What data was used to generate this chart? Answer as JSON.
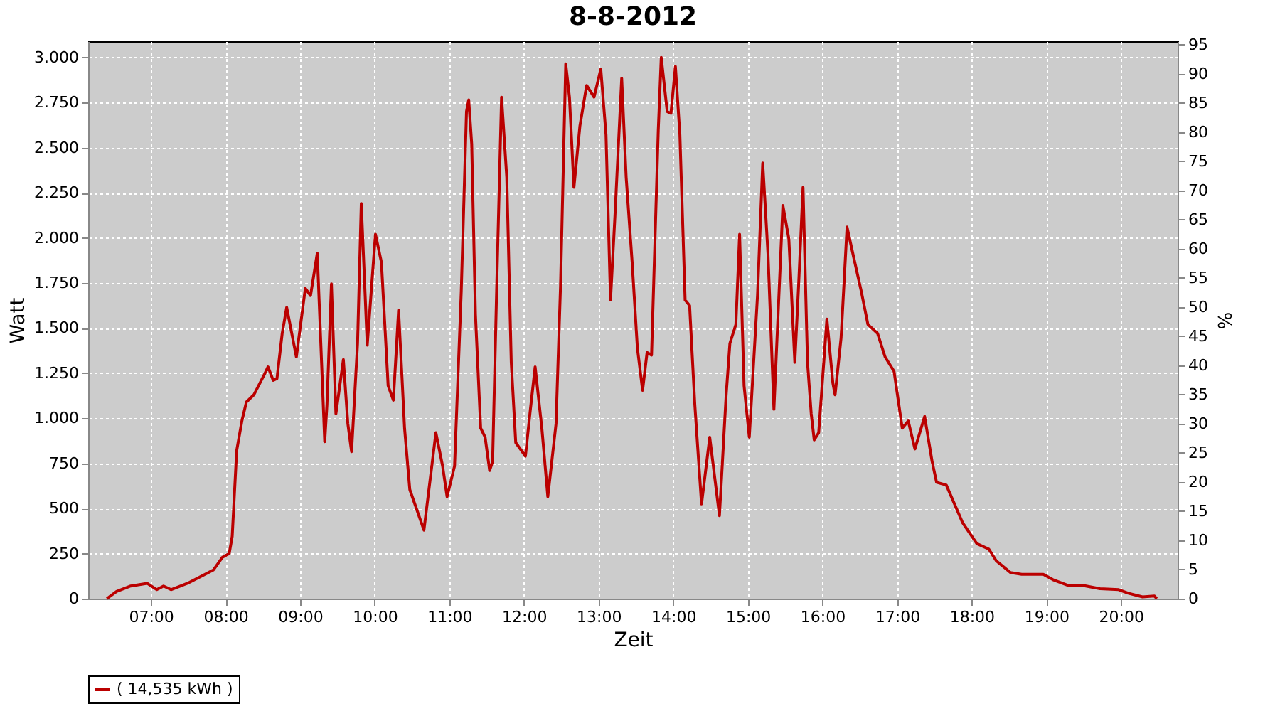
{
  "chart_data": {
    "type": "line",
    "title": "8-8-2012",
    "xlabel": "Zeit",
    "ylabel": "Watt",
    "y2label": "%",
    "xlim": [
      6.16,
      20.76
    ],
    "xticks": [
      {
        "value": 7,
        "label": "07:00"
      },
      {
        "value": 8,
        "label": "08:00"
      },
      {
        "value": 9,
        "label": "09:00"
      },
      {
        "value": 10,
        "label": "10:00"
      },
      {
        "value": 11,
        "label": "11:00"
      },
      {
        "value": 12,
        "label": "12:00"
      },
      {
        "value": 13,
        "label": "13:00"
      },
      {
        "value": 14,
        "label": "14:00"
      },
      {
        "value": 15,
        "label": "15:00"
      },
      {
        "value": 16,
        "label": "16:00"
      },
      {
        "value": 17,
        "label": "17:00"
      },
      {
        "value": 18,
        "label": "18:00"
      },
      {
        "value": 19,
        "label": "19:00"
      },
      {
        "value": 20,
        "label": "20:00"
      }
    ],
    "ylim": [
      0,
      3090
    ],
    "yticks": [
      0,
      250,
      500,
      750,
      {
        "value": 1000,
        "label": "1.000"
      },
      {
        "value": 1250,
        "label": "1.250"
      },
      {
        "value": 1500,
        "label": "1.500"
      },
      {
        "value": 1750,
        "label": "1.750"
      },
      {
        "value": 2000,
        "label": "2.000"
      },
      {
        "value": 2250,
        "label": "2.250"
      },
      {
        "value": 2500,
        "label": "2.500"
      },
      {
        "value": 2750,
        "label": "2.750"
      },
      {
        "value": 3000,
        "label": "3.000"
      }
    ],
    "y2lim": [
      0,
      95.6
    ],
    "y2ticks": [
      0,
      5,
      10,
      15,
      20,
      25,
      30,
      35,
      40,
      45,
      50,
      55,
      60,
      65,
      70,
      75,
      80,
      85,
      90,
      95
    ],
    "grid": true,
    "legend": "bottom",
    "marker": "none",
    "line_style": "solid",
    "series": [
      {
        "name": "( 14,535 kWh )",
        "color": "#bb0000",
        "x": [
          6.41,
          6.54,
          6.73,
          6.95,
          7.08,
          7.17,
          7.27,
          7.49,
          7.68,
          7.84,
          7.96,
          8.05,
          8.09,
          8.15,
          8.22,
          8.28,
          8.38,
          8.53,
          8.57,
          8.64,
          8.69,
          8.76,
          8.82,
          8.95,
          9.07,
          9.14,
          9.23,
          9.26,
          9.33,
          9.36,
          9.42,
          9.48,
          9.58,
          9.64,
          9.69,
          9.77,
          9.82,
          9.9,
          10.01,
          10.09,
          10.18,
          10.25,
          10.32,
          10.4,
          10.47,
          10.66,
          10.82,
          10.91,
          10.97,
          11.07,
          11.16,
          11.23,
          11.26,
          11.3,
          11.35,
          11.42,
          11.48,
          11.54,
          11.58,
          11.64,
          11.7,
          11.77,
          11.83,
          11.89,
          12.02,
          12.08,
          12.15,
          12.24,
          12.32,
          12.43,
          12.49,
          12.56,
          12.61,
          12.67,
          12.75,
          12.84,
          12.94,
          13.03,
          13.1,
          13.16,
          13.22,
          13.31,
          13.37,
          13.45,
          13.52,
          13.59,
          13.65,
          13.71,
          13.8,
          13.84,
          13.92,
          13.97,
          14.03,
          14.09,
          14.16,
          14.22,
          14.29,
          14.38,
          14.49,
          14.62,
          14.71,
          14.76,
          14.84,
          14.89,
          14.95,
          15.02,
          15.13,
          15.2,
          15.27,
          15.35,
          15.47,
          15.55,
          15.63,
          15.68,
          15.74,
          15.8,
          15.85,
          15.89,
          15.95,
          16.06,
          16.14,
          16.17,
          16.25,
          16.33,
          16.42,
          16.52,
          16.61,
          16.74,
          16.84,
          16.96,
          17.07,
          17.15,
          17.24,
          17.37,
          17.47,
          17.53,
          17.66,
          17.88,
          18.07,
          18.23,
          18.33,
          18.52,
          18.67,
          18.96,
          19.09,
          19.28,
          19.47,
          19.72,
          19.97,
          20.1,
          20.29,
          20.45,
          20.48
        ],
        "values": [
          0,
          40,
          70,
          85,
          50,
          70,
          50,
          85,
          125,
          160,
          230,
          250,
          345,
          820,
          985,
          1090,
          1130,
          1250,
          1285,
          1210,
          1220,
          1470,
          1615,
          1340,
          1720,
          1680,
          1915,
          1600,
          870,
          1075,
          1745,
          1025,
          1325,
          970,
          815,
          1415,
          2190,
          1405,
          2020,
          1865,
          1180,
          1100,
          1600,
          945,
          605,
          380,
          920,
          735,
          565,
          735,
          1705,
          2700,
          2765,
          2520,
          1575,
          945,
          895,
          710,
          760,
          1810,
          2780,
          2335,
          1310,
          865,
          790,
          1025,
          1285,
          945,
          565,
          970,
          1730,
          2965,
          2780,
          2280,
          2620,
          2845,
          2780,
          2935,
          2570,
          1655,
          2125,
          2885,
          2335,
          1865,
          1390,
          1155,
          1365,
          1350,
          2595,
          3000,
          2700,
          2690,
          2950,
          2570,
          1655,
          1625,
          1075,
          525,
          895,
          460,
          1130,
          1415,
          1520,
          2020,
          1180,
          895,
          1680,
          2415,
          1915,
          1050,
          2180,
          1995,
          1310,
          1730,
          2280,
          1310,
          1025,
          880,
          920,
          1550,
          1195,
          1130,
          1445,
          2060,
          1890,
          1705,
          1520,
          1470,
          1340,
          1260,
          945,
          985,
          830,
          1010,
          760,
          645,
          630,
          420,
          305,
          275,
          210,
          145,
          135,
          135,
          105,
          75,
          75,
          55,
          50,
          30,
          10,
          15,
          0
        ]
      }
    ]
  }
}
